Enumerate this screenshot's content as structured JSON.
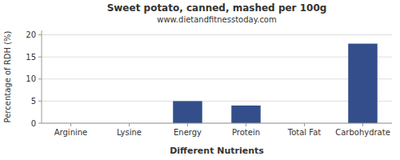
{
  "chart_data": {
    "type": "bar",
    "title": "Sweet potato, canned, mashed per 100g",
    "subtitle": "www.dietandfitnesstoday.com",
    "xlabel": "Different Nutrients",
    "ylabel": "Percentage of RDH (%)",
    "categories": [
      "Arginine",
      "Lysine",
      "Energy",
      "Protein",
      "Total Fat",
      "Carbohydrate"
    ],
    "values": [
      0.0,
      0.0,
      5.0,
      4.0,
      0.0,
      18.0
    ],
    "color": "#334E8A",
    "ylim": [
      0,
      21
    ],
    "yticks": [
      0,
      5,
      10,
      15,
      20
    ],
    "grid": true
  }
}
